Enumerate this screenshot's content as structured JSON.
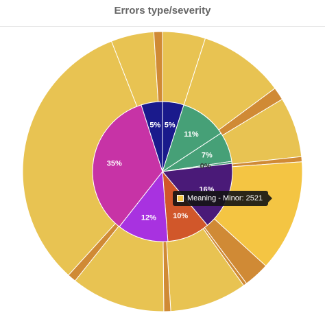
{
  "chart_data": {
    "type": "pie",
    "variant": "sunburst",
    "title": "Errors type/severity",
    "legend": "none",
    "inner_ring": [
      {
        "label": "5%",
        "value": 5,
        "color": "#1a1a8c"
      },
      {
        "label": "11%",
        "value": 11,
        "color": "#46a077"
      },
      {
        "label": "7%",
        "value": 7,
        "color": "#46a077"
      },
      {
        "label": "0%",
        "value": 0.5,
        "color": "#46a077"
      },
      {
        "label": "16%",
        "value": 16,
        "color": "#4a1a78"
      },
      {
        "label": "10%",
        "value": 10,
        "color": "#d1572a"
      },
      {
        "label": "12%",
        "value": 12,
        "color": "#a832e0"
      },
      {
        "label": "35%",
        "value": 35,
        "color": "#c733a6"
      },
      {
        "label": "5%",
        "value": 5,
        "color": "#1a1a8c"
      }
    ],
    "outer_ring": [
      {
        "value": 5,
        "color": "#e8c352"
      },
      {
        "value": 10,
        "color": "#e8c352"
      },
      {
        "value": 1.5,
        "color": "#d08a35"
      },
      {
        "value": 7,
        "color": "#e8c352"
      },
      {
        "value": 0.6,
        "color": "#d08a35"
      },
      {
        "value": 13,
        "color": "#f4c543"
      },
      {
        "value": 3,
        "color": "#d08a35"
      },
      {
        "value": 0.4,
        "color": "#d08a35"
      },
      {
        "value": 9,
        "color": "#e8c352"
      },
      {
        "value": 0.8,
        "color": "#d08a35"
      },
      {
        "value": 11,
        "color": "#e8c352"
      },
      {
        "value": 1,
        "color": "#d08a35"
      },
      {
        "value": 32.6,
        "color": "#e8c352"
      },
      {
        "value": 5,
        "color": "#e8c352"
      },
      {
        "value": 1,
        "color": "#d08a35"
      }
    ]
  },
  "tooltip": {
    "text": "Meaning - Minor: 2521",
    "swatch_color": "#f4c543"
  }
}
